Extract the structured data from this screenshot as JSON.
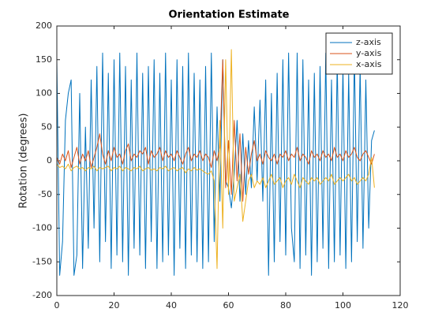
{
  "chart_data": {
    "type": "line",
    "title": "Orientation Estimate",
    "y_label": "Rotation (degrees)",
    "x": [
      0,
      1,
      2,
      3,
      4,
      5,
      6,
      7,
      8,
      9,
      10,
      11,
      12,
      13,
      14,
      15,
      16,
      17,
      18,
      19,
      20,
      21,
      22,
      23,
      24,
      25,
      26,
      27,
      28,
      29,
      30,
      31,
      32,
      33,
      34,
      35,
      36,
      37,
      38,
      39,
      40,
      41,
      42,
      43,
      44,
      45,
      46,
      47,
      48,
      49,
      50,
      51,
      52,
      53,
      54,
      55,
      56,
      57,
      58,
      59,
      60,
      61,
      62,
      63,
      64,
      65,
      66,
      67,
      68,
      69,
      70,
      71,
      72,
      73,
      74,
      75,
      76,
      77,
      78,
      79,
      80,
      81,
      82,
      83,
      84,
      85,
      86,
      87,
      88,
      89,
      90,
      91,
      92,
      93,
      94,
      95,
      96,
      97,
      98,
      99,
      100,
      101,
      102,
      103,
      104,
      105,
      106,
      107,
      108,
      109,
      110,
      111
    ],
    "series": [
      {
        "name": "z-axis",
        "color": "#0072bd",
        "values": [
          150,
          -170,
          -120,
          60,
          100,
          120,
          -170,
          -140,
          100,
          -160,
          50,
          -130,
          120,
          -100,
          140,
          -150,
          160,
          -120,
          130,
          -160,
          150,
          -140,
          160,
          -150,
          140,
          -170,
          120,
          -130,
          160,
          -140,
          130,
          -160,
          140,
          -120,
          150,
          -160,
          130,
          -150,
          160,
          -140,
          120,
          -170,
          150,
          -130,
          140,
          -160,
          160,
          -140,
          130,
          -150,
          120,
          -160,
          140,
          -150,
          160,
          -120,
          80,
          -60,
          150,
          -30,
          -40,
          -70,
          -20,
          60,
          -60,
          40,
          -50,
          30,
          -40,
          80,
          -30,
          90,
          -60,
          120,
          -170,
          100,
          -150,
          130,
          -120,
          150,
          -140,
          160,
          -100,
          -150,
          160,
          -160,
          150,
          -140,
          120,
          -170,
          130,
          -150,
          140,
          -130,
          160,
          -160,
          120,
          -150,
          150,
          -140,
          140,
          -160,
          130,
          -150,
          160,
          -120,
          140,
          -130,
          120,
          -100,
          30,
          45
        ]
      },
      {
        "name": "y-axis",
        "color": "#d95319",
        "values": [
          5,
          -5,
          10,
          0,
          15,
          -10,
          5,
          20,
          -5,
          10,
          0,
          15,
          -10,
          5,
          20,
          40,
          10,
          -5,
          15,
          0,
          20,
          5,
          10,
          -5,
          15,
          25,
          0,
          10,
          5,
          15,
          10,
          20,
          -5,
          15,
          5,
          10,
          20,
          0,
          15,
          5,
          10,
          0,
          15,
          5,
          -5,
          10,
          20,
          0,
          10,
          5,
          15,
          0,
          10,
          5,
          -10,
          15,
          0,
          20,
          150,
          -40,
          30,
          -50,
          60,
          -30,
          40,
          -60,
          20,
          -20,
          10,
          30,
          0,
          10,
          -5,
          15,
          5,
          0,
          10,
          -5,
          10,
          5,
          15,
          0,
          10,
          5,
          20,
          0,
          10,
          5,
          -5,
          15,
          5,
          10,
          0,
          15,
          5,
          10,
          0,
          20,
          5,
          10,
          0,
          15,
          5,
          10,
          20,
          5,
          0,
          10,
          15,
          5,
          -5,
          10
        ]
      },
      {
        "name": "x-axis",
        "color": "#edb120",
        "values": [
          -5,
          -10,
          -8,
          -12,
          -5,
          -15,
          -10,
          -8,
          -12,
          -10,
          -15,
          -10,
          -12,
          -8,
          -15,
          -10,
          -12,
          -10,
          -8,
          -15,
          -10,
          -12,
          -8,
          -15,
          -10,
          -12,
          -15,
          -10,
          -12,
          -8,
          -15,
          -12,
          -10,
          -14,
          -12,
          -15,
          -10,
          -12,
          -8,
          -15,
          -12,
          -10,
          -15,
          -12,
          -10,
          -18,
          -12,
          -15,
          -10,
          -14,
          -12,
          -15,
          -18,
          -20,
          -15,
          -30,
          -160,
          60,
          -100,
          150,
          -50,
          165,
          -60,
          -40,
          -20,
          -90,
          -60,
          -30,
          -20,
          -40,
          -30,
          -35,
          -25,
          -40,
          -30,
          -20,
          -35,
          -30,
          -25,
          -40,
          -30,
          -25,
          -35,
          -20,
          -30,
          -40,
          -25,
          -30,
          -35,
          -25,
          -30,
          -25,
          -35,
          -30,
          -25,
          -30,
          -20,
          -35,
          -30,
          -25,
          -30,
          -25,
          -20,
          -30,
          -25,
          -35,
          -30,
          -25,
          -30,
          -20,
          5,
          -40
        ]
      }
    ],
    "xlim": [
      0,
      120
    ],
    "xticks": [
      0,
      20,
      40,
      60,
      80,
      100,
      120
    ],
    "ylim": [
      -200,
      200
    ],
    "yticks": [
      -200,
      -150,
      -100,
      -50,
      0,
      50,
      100,
      150,
      200
    ],
    "legend": "northeast"
  }
}
